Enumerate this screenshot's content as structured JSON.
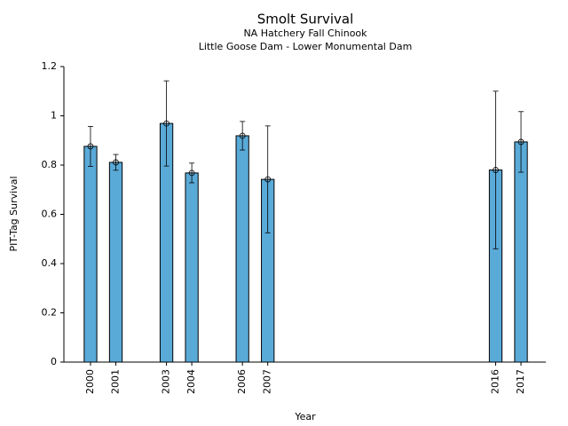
{
  "chart_data": {
    "type": "bar",
    "title": "Smolt Survival",
    "subtitle": [
      "NA Hatchery Fall Chinook",
      "Little Goose Dam - Lower Monumental Dam"
    ],
    "xlabel": "Year",
    "ylabel": "PIT-Tag Survival",
    "x": [
      2000,
      2001,
      2003,
      2004,
      2006,
      2007,
      2016,
      2017
    ],
    "values": [
      0.876,
      0.811,
      0.969,
      0.768,
      0.919,
      0.742,
      0.78,
      0.894
    ],
    "errors": [
      0.081,
      0.032,
      0.173,
      0.04,
      0.058,
      0.217,
      0.32,
      0.123
    ],
    "color": "#5aaad8",
    "xlim": [
      1998.95,
      2017.98
    ],
    "xticks": [
      2000,
      2001,
      2003,
      2004,
      2006,
      2007,
      2016,
      2017
    ],
    "ylim": [
      0,
      1.2
    ],
    "yticks": [
      0,
      0.2,
      0.4,
      0.6,
      0.8,
      1,
      1.2
    ]
  }
}
